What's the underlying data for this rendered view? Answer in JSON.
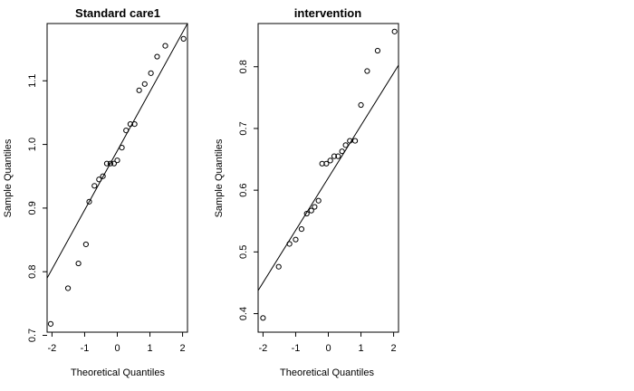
{
  "chart_data": [
    {
      "type": "scatter",
      "title": "Standard care1",
      "xlabel": "Theoretical Quantiles",
      "ylabel": "Sample Quantiles",
      "xlim": [
        -2.15,
        2.15
      ],
      "ylim": [
        0.705,
        1.19
      ],
      "xticks": [
        -2,
        -1,
        0,
        1,
        2
      ],
      "yticks": [
        0.7,
        0.8,
        0.9,
        1.0,
        1.1
      ],
      "ytick_labels": [
        "0.7",
        "0.8",
        "0.9",
        "1.0",
        "1.1"
      ],
      "grid": false,
      "points": [
        {
          "x": -2.04,
          "y": 0.718
        },
        {
          "x": -1.51,
          "y": 0.774
        },
        {
          "x": -1.19,
          "y": 0.813
        },
        {
          "x": -0.96,
          "y": 0.843
        },
        {
          "x": -0.86,
          "y": 0.91
        },
        {
          "x": -0.7,
          "y": 0.935
        },
        {
          "x": -0.56,
          "y": 0.945
        },
        {
          "x": -0.44,
          "y": 0.95
        },
        {
          "x": -0.32,
          "y": 0.97
        },
        {
          "x": -0.21,
          "y": 0.97
        },
        {
          "x": -0.1,
          "y": 0.97
        },
        {
          "x": 0.0,
          "y": 0.975
        },
        {
          "x": 0.14,
          "y": 0.995
        },
        {
          "x": 0.27,
          "y": 1.022
        },
        {
          "x": 0.4,
          "y": 1.032
        },
        {
          "x": 0.53,
          "y": 1.032
        },
        {
          "x": 0.67,
          "y": 1.085
        },
        {
          "x": 0.84,
          "y": 1.095
        },
        {
          "x": 1.03,
          "y": 1.112
        },
        {
          "x": 1.22,
          "y": 1.138
        },
        {
          "x": 1.47,
          "y": 1.155
        },
        {
          "x": 2.03,
          "y": 1.166
        }
      ],
      "line": {
        "x": [
          -2.15,
          2.15
        ],
        "y": [
          0.79,
          1.19
        ]
      }
    },
    {
      "type": "scatter",
      "title": "intervention",
      "xlabel": "Theoretical Quantiles",
      "ylabel": "Sample Quantiles",
      "xlim": [
        -2.15,
        2.15
      ],
      "ylim": [
        0.37,
        0.87
      ],
      "xticks": [
        -2,
        -1,
        0,
        1,
        2
      ],
      "yticks": [
        0.4,
        0.5,
        0.6,
        0.7,
        0.8
      ],
      "ytick_labels": [
        "0.4",
        "0.5",
        "0.6",
        "0.7",
        "0.8"
      ],
      "grid": false,
      "points": [
        {
          "x": -2.0,
          "y": 0.393
        },
        {
          "x": -1.52,
          "y": 0.476
        },
        {
          "x": -1.19,
          "y": 0.513
        },
        {
          "x": -1.0,
          "y": 0.52
        },
        {
          "x": -0.82,
          "y": 0.537
        },
        {
          "x": -0.66,
          "y": 0.562
        },
        {
          "x": -0.52,
          "y": 0.567
        },
        {
          "x": -0.42,
          "y": 0.573
        },
        {
          "x": -0.3,
          "y": 0.583
        },
        {
          "x": -0.19,
          "y": 0.643
        },
        {
          "x": -0.06,
          "y": 0.643
        },
        {
          "x": 0.06,
          "y": 0.648
        },
        {
          "x": 0.18,
          "y": 0.655
        },
        {
          "x": 0.3,
          "y": 0.655
        },
        {
          "x": 0.42,
          "y": 0.663
        },
        {
          "x": 0.53,
          "y": 0.673
        },
        {
          "x": 0.66,
          "y": 0.68
        },
        {
          "x": 0.82,
          "y": 0.68
        },
        {
          "x": 1.0,
          "y": 0.738
        },
        {
          "x": 1.19,
          "y": 0.793
        },
        {
          "x": 1.51,
          "y": 0.826
        },
        {
          "x": 2.03,
          "y": 0.857
        }
      ],
      "line": {
        "x": [
          -2.15,
          2.15
        ],
        "y": [
          0.4375,
          0.8025
        ]
      }
    }
  ]
}
